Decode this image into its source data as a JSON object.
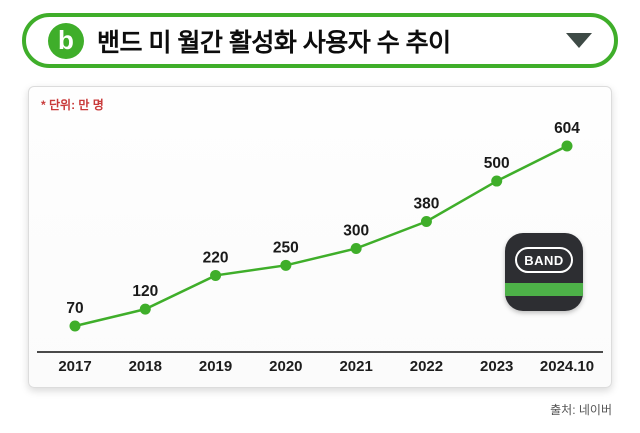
{
  "header": {
    "title": "밴드 미 월간 활성화 사용자 수 추이",
    "logo_letter": "b",
    "accent_color": "#3fae2a"
  },
  "card": {
    "unit_note": "* 단위: 만 명"
  },
  "chart_data": {
    "type": "line",
    "title": "밴드 미 월간 활성화 사용자 수 추이",
    "categories": [
      "2017",
      "2018",
      "2019",
      "2020",
      "2021",
      "2022",
      "2023",
      "2024.10"
    ],
    "values": [
      70,
      120,
      220,
      250,
      300,
      380,
      500,
      604
    ],
    "unit": "만 명",
    "xlabel": "",
    "ylabel": "",
    "ylim": [
      0,
      650
    ],
    "grid": false,
    "legend_position": "none",
    "line_color": "#3fae2a",
    "point_color": "#3fae2a",
    "label_color": "#1a1a1a"
  },
  "band_icon": {
    "label": "BAND",
    "stripe_color": "#4db148",
    "background_color": "#2d2e32"
  },
  "footer": {
    "source": "출처: 네이버"
  }
}
